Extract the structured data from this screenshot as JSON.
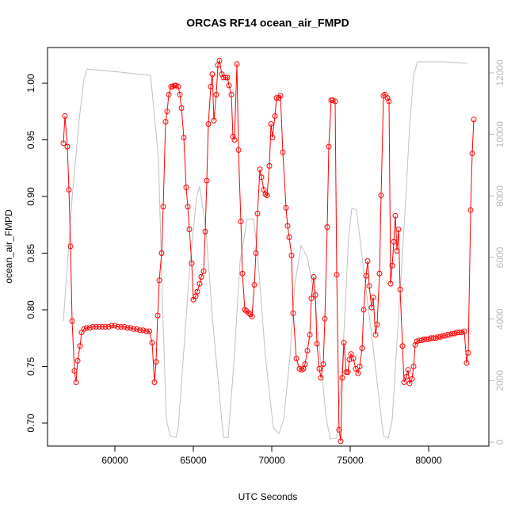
{
  "chart_data": {
    "type": "line",
    "title": "ORCAS RF14 ocean_air_FMPD",
    "xlabel": "UTC Seconds",
    "ylabel": "ocean_air_FMPD",
    "xlim": [
      55707,
      83838
    ],
    "xticks": [
      60000,
      65000,
      70000,
      75000,
      80000
    ],
    "ylim": [
      0.6797,
      1.0315
    ],
    "yticks": [
      {
        "value": 0.7,
        "label": "0.70"
      },
      0.75,
      {
        "value": 0.8,
        "label": "0.80"
      },
      0.85,
      {
        "value": 0.9,
        "label": "0.90"
      },
      0.95,
      {
        "value": 1,
        "label": "1.00"
      }
    ],
    "y2lim": [
      -129,
      12824
    ],
    "y2ticks": [
      0,
      2000,
      4000,
      6000,
      8000,
      10000,
      12000
    ],
    "series": [
      {
        "color": "#ff0000",
        "markers": true,
        "x": [
          56717,
          56818,
          56970,
          57071,
          57172,
          57273,
          57424,
          57525,
          57626,
          57778,
          57879,
          58030,
          58200,
          58400,
          58600,
          58800,
          59000,
          59200,
          59400,
          59600,
          59800,
          60000,
          60200,
          60400,
          60600,
          60800,
          61000,
          61200,
          61400,
          61600,
          61800,
          62000,
          62200,
          62374,
          62525,
          62626,
          62727,
          62828,
          62980,
          63081,
          63232,
          63333,
          63434,
          63586,
          63687,
          63788,
          63889,
          64040,
          64141,
          64242,
          64394,
          64545,
          64646,
          64747,
          64899,
          65000,
          65152,
          65253,
          65404,
          65505,
          65657,
          65758,
          65859,
          65960,
          66111,
          66212,
          66313,
          66465,
          66566,
          66667,
          66818,
          66919,
          67071,
          67172,
          67273,
          67424,
          67525,
          67626,
          67778,
          67879,
          68030,
          68131,
          68283,
          68384,
          68535,
          68636,
          68737,
          68889,
          68990,
          69091,
          69242,
          69343,
          69495,
          69596,
          69697,
          69848,
          69949,
          70051,
          70202,
          70303,
          70455,
          70556,
          70707,
          70909,
          71010,
          71111,
          71263,
          71364,
          71566,
          71768,
          71919,
          72020,
          72121,
          72273,
          72424,
          72525,
          72677,
          72778,
          72879,
          73030,
          73131,
          73283,
          73384,
          73535,
          73636,
          73788,
          73889,
          74040,
          74141,
          74293,
          74394,
          74495,
          74596,
          74747,
          74848,
          74949,
          75051,
          75202,
          75354,
          75505,
          75606,
          75758,
          75859,
          76010,
          76111,
          76212,
          76364,
          76465,
          76616,
          76717,
          76869,
          76970,
          77121,
          77222,
          77374,
          77475,
          77576,
          77677,
          77778,
          77879,
          77980,
          78081,
          78182,
          78333,
          78434,
          78586,
          78687,
          78788,
          78939,
          79040,
          79141,
          79242,
          79400,
          79550,
          79700,
          79850,
          80000,
          80150,
          80300,
          80450,
          80600,
          80750,
          80900,
          81050,
          81200,
          81350,
          81500,
          81650,
          81800,
          81950,
          82100,
          82273,
          82424,
          82525,
          82677,
          82778,
          82879
        ],
        "values": [
          0.947,
          0.971,
          0.944,
          0.906,
          0.856,
          0.79,
          0.746,
          0.736,
          0.755,
          0.768,
          0.78,
          0.783,
          0.784,
          0.784,
          0.785,
          0.785,
          0.785,
          0.785,
          0.785,
          0.785,
          0.786,
          0.786,
          0.785,
          0.785,
          0.785,
          0.784,
          0.784,
          0.783,
          0.783,
          0.782,
          0.782,
          0.781,
          0.781,
          0.771,
          0.736,
          0.754,
          0.795,
          0.826,
          0.85,
          0.891,
          0.966,
          0.975,
          0.99,
          0.997,
          0.997,
          0.998,
          0.998,
          0.997,
          0.99,
          0.978,
          0.952,
          0.908,
          0.891,
          0.871,
          0.841,
          0.809,
          0.812,
          0.816,
          0.823,
          0.829,
          0.834,
          0.869,
          0.914,
          0.964,
          0.997,
          1.008,
          0.967,
          0.99,
          1.016,
          1.02,
          1.008,
          1.005,
          1.005,
          1.005,
          0.998,
          0.99,
          0.953,
          0.95,
          1.017,
          0.941,
          0.878,
          0.832,
          0.8,
          0.799,
          0.797,
          0.796,
          0.794,
          0.822,
          0.85,
          0.885,
          0.924,
          0.917,
          0.906,
          0.902,
          0.901,
          0.927,
          0.964,
          0.952,
          0.971,
          0.987,
          0.987,
          0.989,
          0.939,
          0.89,
          0.874,
          0.864,
          0.848,
          0.797,
          0.757,
          0.748,
          0.747,
          0.748,
          0.752,
          0.764,
          0.778,
          0.81,
          0.829,
          0.813,
          0.77,
          0.748,
          0.74,
          0.752,
          0.792,
          0.873,
          0.944,
          0.985,
          0.985,
          0.984,
          0.831,
          0.694,
          0.684,
          0.74,
          0.771,
          0.745,
          0.745,
          0.756,
          0.761,
          0.757,
          0.748,
          0.744,
          0.75,
          0.766,
          0.8,
          0.83,
          0.843,
          0.821,
          0.802,
          0.811,
          0.778,
          0.787,
          0.832,
          0.901,
          0.989,
          0.99,
          0.987,
          0.984,
          0.823,
          0.839,
          0.86,
          0.883,
          0.852,
          0.871,
          0.818,
          0.768,
          0.736,
          0.741,
          0.747,
          0.735,
          0.739,
          0.75,
          0.769,
          0.772,
          0.773,
          0.773,
          0.774,
          0.774,
          0.774,
          0.775,
          0.775,
          0.775,
          0.776,
          0.776,
          0.777,
          0.777,
          0.778,
          0.778,
          0.779,
          0.779,
          0.78,
          0.78,
          0.78,
          0.781,
          0.753,
          0.762,
          0.888,
          0.938,
          0.968
        ]
      },
      {
        "color": "#c0c0c0",
        "axis": "y2",
        "markers": false,
        "x": [
          56717,
          57273,
          57727,
          58030,
          58232,
          58737,
          60253,
          62273,
          62778,
          63030,
          63283,
          63535,
          63889,
          64040,
          64293,
          64798,
          65202,
          65404,
          65808,
          66212,
          66717,
          66919,
          67222,
          67576,
          67980,
          68434,
          68838,
          69091,
          69596,
          70101,
          70455,
          70758,
          71162,
          71465,
          71869,
          72273,
          72778,
          73131,
          73485,
          73737,
          74141,
          74495,
          74899,
          75101,
          75404,
          75909,
          76414,
          76818,
          77121,
          77424,
          77677,
          78081,
          78485,
          78788,
          79040,
          79293,
          80960,
          82475
        ],
        "values": [
          3940,
          7930,
          10500,
          11800,
          12130,
          12100,
          12030,
          11920,
          9220,
          4580,
          720,
          200,
          150,
          460,
          2270,
          5870,
          7930,
          8320,
          6900,
          4070,
          1240,
          150,
          150,
          2520,
          5870,
          7240,
          7260,
          6130,
          2780,
          460,
          280,
          720,
          2780,
          5100,
          6390,
          6000,
          4580,
          2520,
          720,
          100,
          130,
          2520,
          6640,
          7600,
          7550,
          5360,
          3300,
          1490,
          200,
          130,
          720,
          4070,
          7420,
          10250,
          11920,
          12360,
          12360,
          12310
        ]
      }
    ]
  }
}
